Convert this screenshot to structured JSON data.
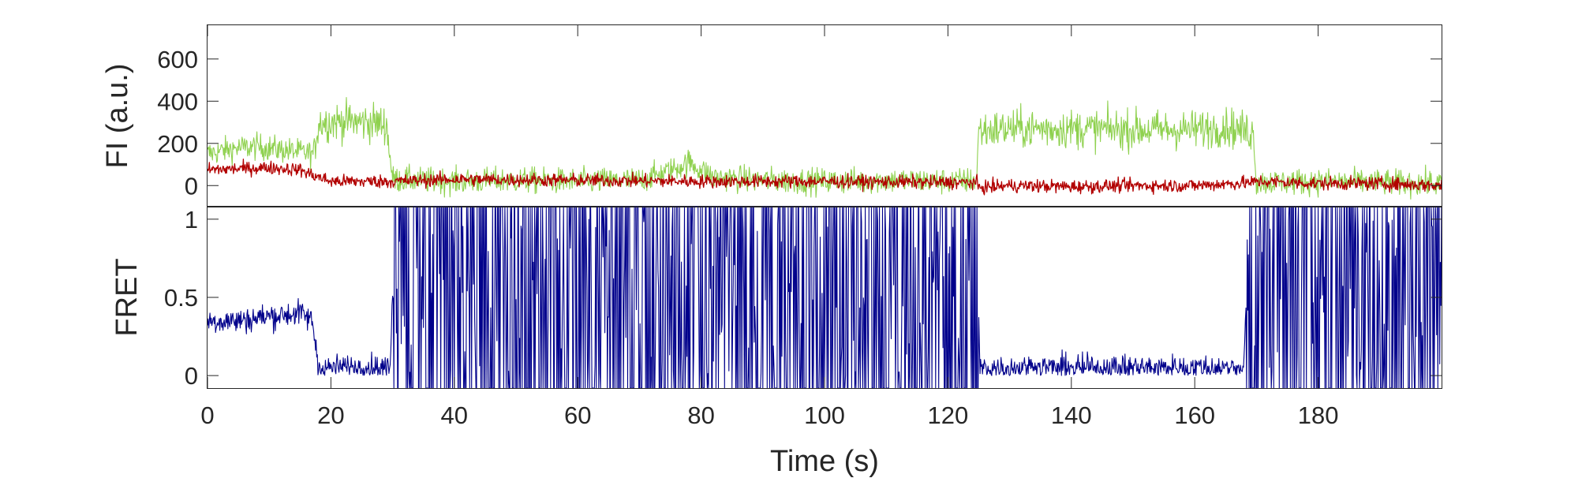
{
  "chart_data": [
    {
      "type": "line",
      "panel": "top",
      "ylabel": "FI (a.u.)",
      "xlabel": "",
      "xlim": [
        0,
        200
      ],
      "ylim": [
        -100,
        760
      ],
      "yticks": [
        0,
        200,
        400,
        600
      ],
      "ytick_labels": [
        "0",
        "200",
        "400",
        "600"
      ],
      "grid": false,
      "legend": null,
      "series": [
        {
          "color": "#8fd14f",
          "x": [
            0,
            4,
            8,
            12,
            16,
            17.2,
            18,
            22,
            26,
            29,
            30,
            40,
            50,
            60,
            70,
            75,
            78,
            82,
            90,
            100,
            110,
            120,
            124.6,
            125,
            130,
            140,
            150,
            160,
            165,
            168,
            169.5,
            170,
            180,
            190,
            200
          ],
          "values": [
            150,
            175,
            185,
            170,
            155,
            150,
            300,
            305,
            300,
            290,
            30,
            20,
            25,
            20,
            25,
            70,
            110,
            40,
            25,
            20,
            25,
            20,
            25,
            260,
            270,
            270,
            265,
            265,
            280,
            260,
            250,
            15,
            20,
            15,
            10
          ]
        },
        {
          "color": "#b20000",
          "x": [
            0,
            5,
            10,
            15,
            17,
            20,
            30,
            40,
            60,
            80,
            100,
            120,
            124.6,
            125,
            130,
            140,
            150,
            160,
            169.5,
            170,
            180,
            190,
            200
          ],
          "values": [
            75,
            80,
            85,
            75,
            50,
            20,
            20,
            30,
            25,
            20,
            20,
            15,
            15,
            -10,
            0,
            -5,
            0,
            0,
            15,
            20,
            10,
            10,
            0
          ]
        }
      ]
    },
    {
      "type": "line",
      "panel": "bottom",
      "ylabel": "FRET",
      "xlabel": "Time (s)",
      "xlim": [
        0,
        200
      ],
      "ylim": [
        -0.08,
        1.08
      ],
      "yticks": [
        0,
        0.5,
        1
      ],
      "ytick_labels": [
        "0",
        "0.5",
        "1"
      ],
      "xticks": [
        0,
        20,
        40,
        60,
        80,
        100,
        120,
        140,
        160,
        180
      ],
      "xtick_labels": [
        "0",
        "20",
        "40",
        "60",
        "80",
        "100",
        "120",
        "140",
        "160",
        "180"
      ],
      "grid": false,
      "legend": null,
      "series": [
        {
          "color": "#00008b",
          "x": [
            0,
            5,
            10,
            15,
            17,
            18,
            24,
            29.6,
            30,
            60,
            100,
            124.9,
            125.2,
            140,
            160,
            167.9,
            168.4,
            185,
            200
          ],
          "values": [
            0.35,
            0.35,
            0.38,
            0.4,
            0.35,
            0.05,
            0.05,
            0.05,
            0.5,
            0.5,
            0.5,
            0.5,
            0.05,
            0.05,
            0.05,
            0.05,
            0.5,
            0.5,
            0.5
          ]
        }
      ]
    }
  ]
}
